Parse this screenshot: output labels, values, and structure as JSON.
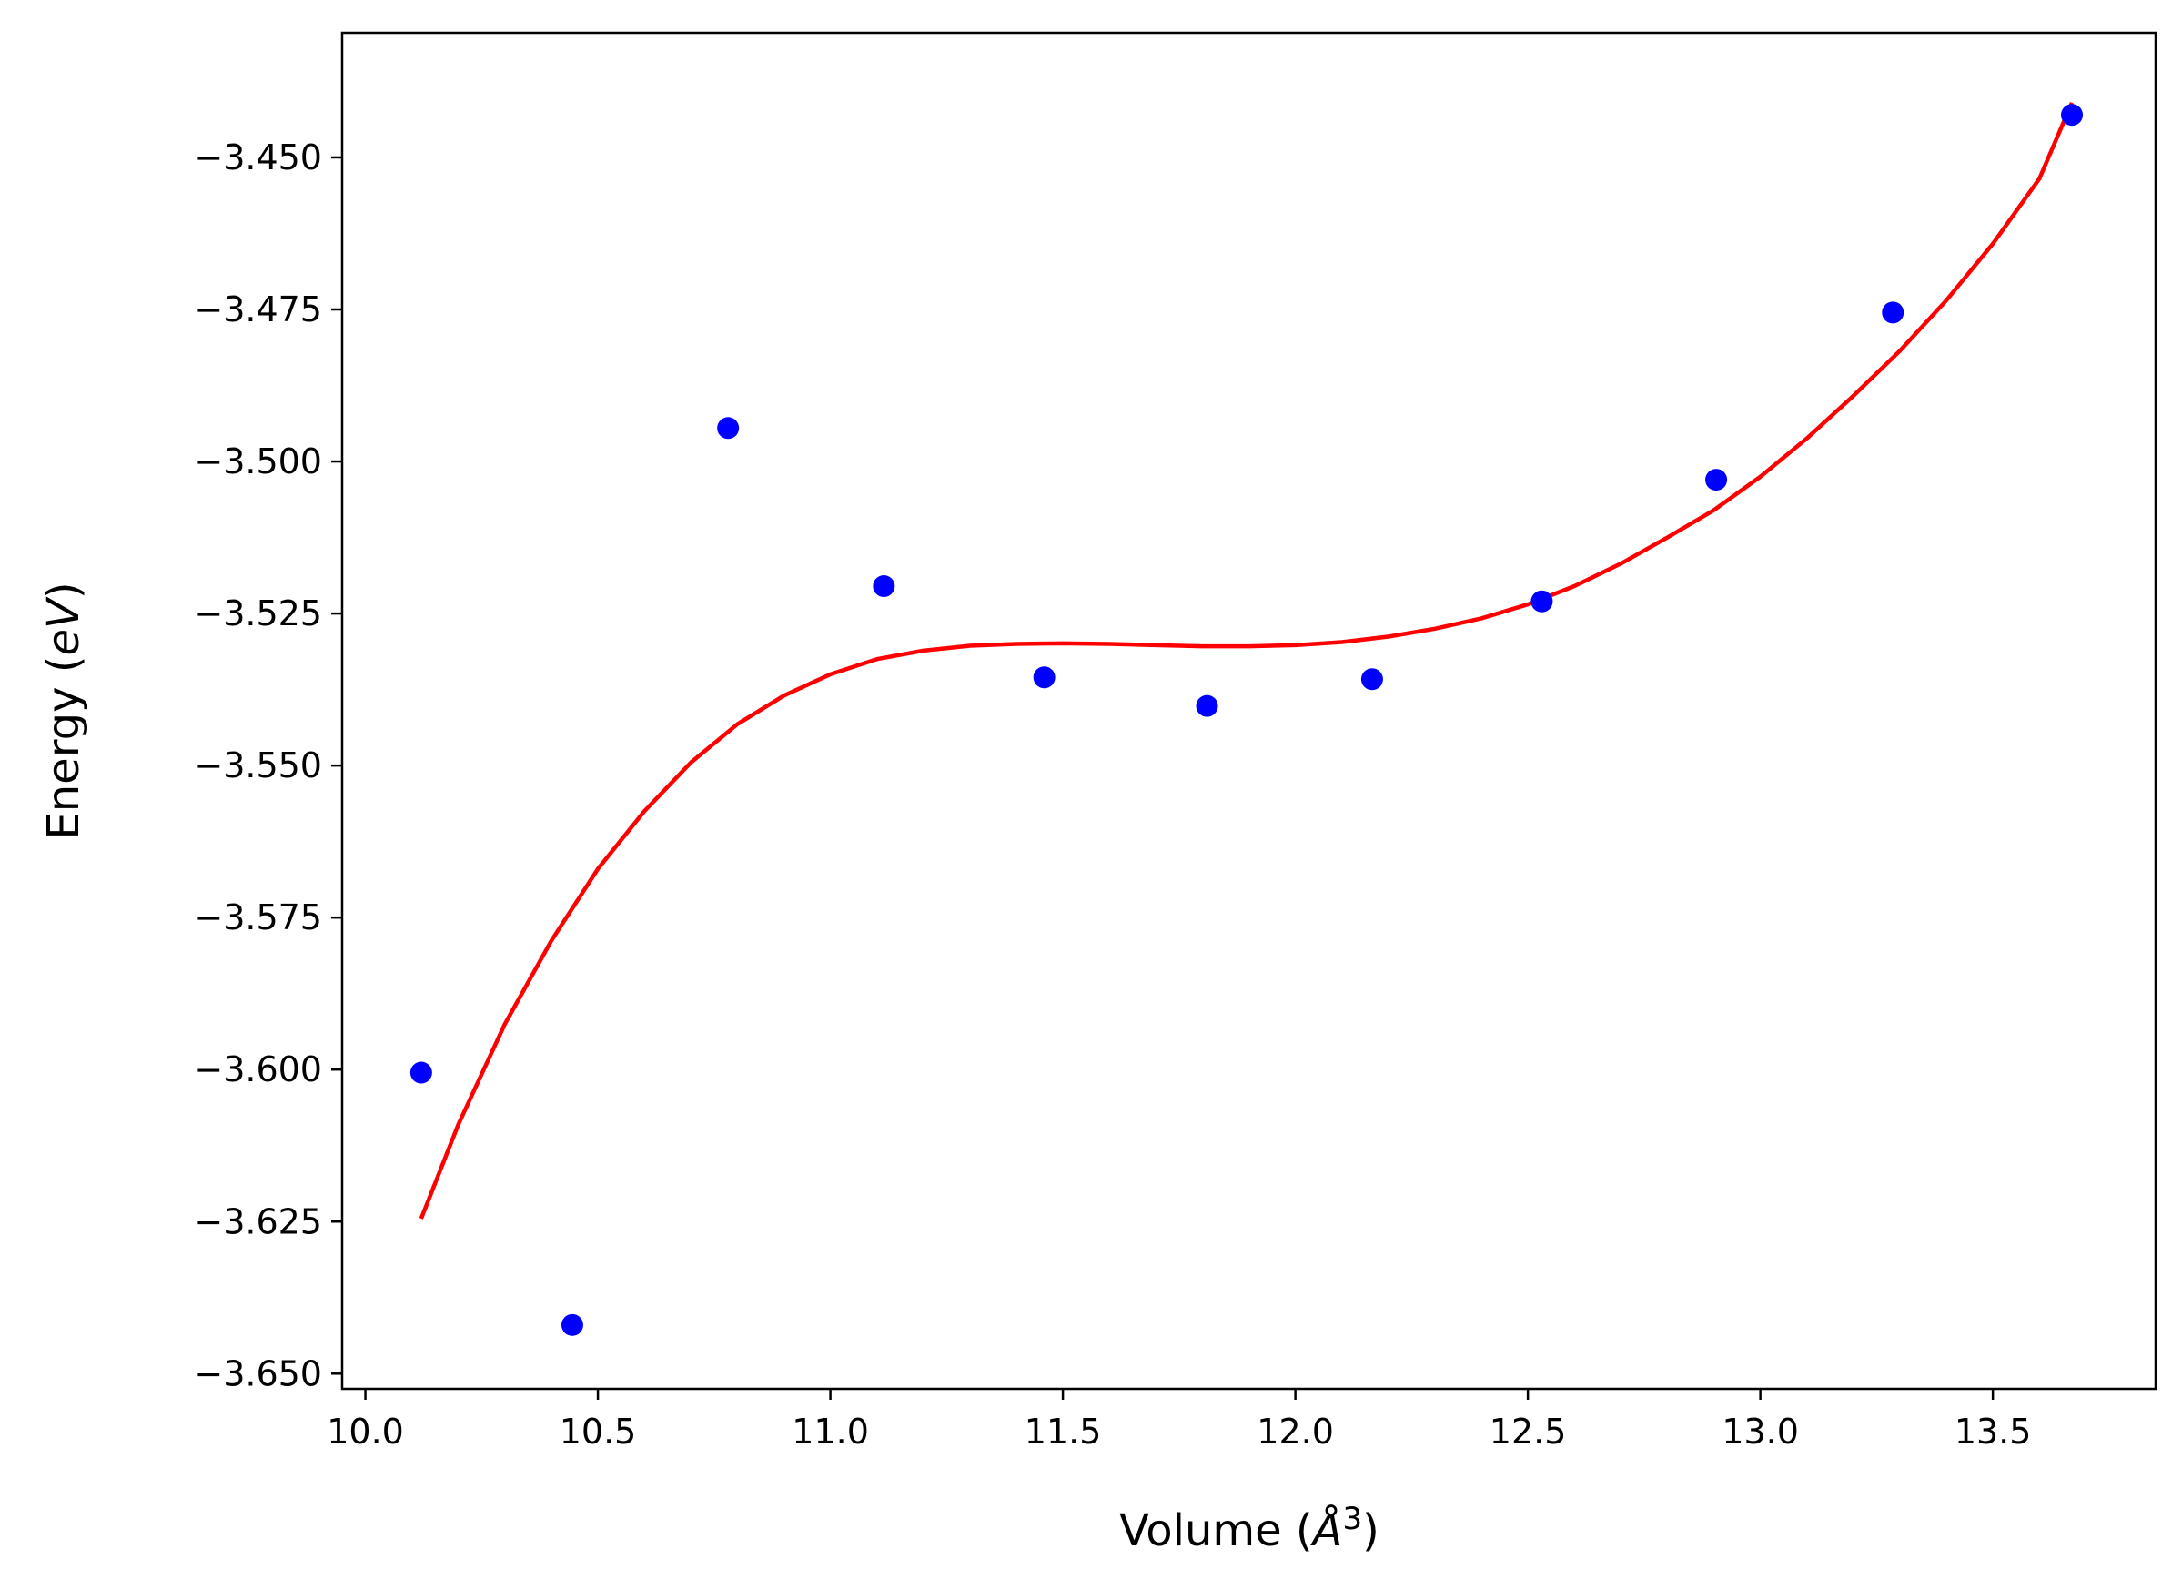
{
  "chart_data": {
    "type": "scatter",
    "title": "",
    "xlabel": "Volume",
    "ylabel": "Energy",
    "xlabel_unit": "Å",
    "xlabel_unit_exp": "3",
    "ylabel_unit": "eV",
    "xlim": [
      9.95,
      13.85
    ],
    "ylim": [
      -3.6525,
      -3.4295
    ],
    "xticks": [
      10.0,
      10.5,
      11.0,
      11.5,
      12.0,
      12.5,
      13.0,
      13.5
    ],
    "xtick_labels": [
      "10.0",
      "10.5",
      "11.0",
      "11.5",
      "12.0",
      "12.5",
      "13.0",
      "13.5"
    ],
    "yticks": [
      -3.45,
      -3.475,
      -3.5,
      -3.525,
      -3.55,
      -3.575,
      -3.6,
      -3.625,
      -3.65
    ],
    "ytick_labels": [
      "−3.450",
      "−3.475",
      "−3.500",
      "−3.525",
      "−3.550",
      "−3.575",
      "−3.600",
      "−3.625",
      "−3.650"
    ],
    "grid": false,
    "colors": {
      "points": "#0000ff",
      "fit": "#ff0000"
    },
    "series": [
      {
        "kind": "points",
        "x": [
          10.12,
          10.445,
          10.78,
          11.115,
          11.46,
          11.81,
          12.165,
          12.53,
          12.905,
          13.285,
          13.67
        ],
        "y": [
          -3.6005,
          -3.642,
          -3.4945,
          -3.5205,
          -3.5355,
          -3.5402,
          -3.5358,
          -3.523,
          -3.503,
          -3.4755,
          -3.443
        ]
      },
      {
        "kind": "fit-line",
        "x": [
          10.12,
          10.2,
          10.3,
          10.4,
          10.5,
          10.6,
          10.7,
          10.8,
          10.9,
          11.0,
          11.1,
          11.2,
          11.3,
          11.4,
          11.5,
          11.6,
          11.7,
          11.8,
          11.9,
          12.0,
          12.1,
          12.2,
          12.3,
          12.4,
          12.5,
          12.6,
          12.7,
          12.8,
          12.9,
          13.0,
          13.1,
          13.2,
          13.3,
          13.4,
          13.5,
          13.6,
          13.67
        ],
        "y": [
          -3.6245,
          -3.609,
          -3.5925,
          -3.5788,
          -3.567,
          -3.5575,
          -3.5495,
          -3.5432,
          -3.5385,
          -3.535,
          -3.5325,
          -3.5311,
          -3.5303,
          -3.53,
          -3.5299,
          -3.53,
          -3.5302,
          -3.5304,
          -3.5304,
          -3.5302,
          -3.5297,
          -3.5288,
          -3.5275,
          -3.5258,
          -3.5235,
          -3.5205,
          -3.5168,
          -3.5125,
          -3.508,
          -3.5025,
          -3.4962,
          -3.4892,
          -3.4818,
          -3.4735,
          -3.4642,
          -3.4535,
          -3.441
        ]
      }
    ]
  }
}
